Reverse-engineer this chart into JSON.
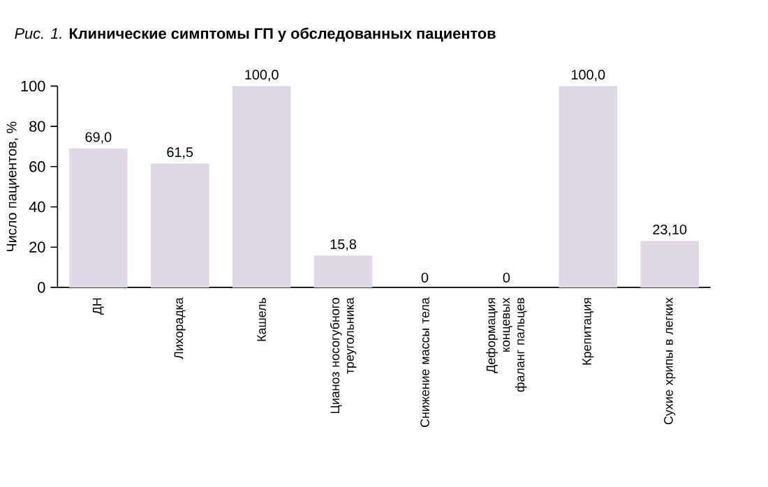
{
  "chart_data": {
    "type": "bar",
    "title": "*Рис. 1.* **Клинические симптомы ГП у обследованных пациентов**",
    "ylabel": "Число пациентов, %",
    "categories": [
      "ДН",
      "Лихорадка",
      "Кашель",
      "Цианоз носогубного треугольника",
      "Снижение массы тела",
      "Деформация концевых фаланг пальцев",
      "Крепитация",
      "Сухие хрипы в легких"
    ],
    "values": [
      69.0,
      61.5,
      100.0,
      15.8,
      0,
      0,
      100.0,
      23.1
    ],
    "value_labels": [
      "69,0",
      "61,5",
      "100,0",
      "15,8",
      "0",
      "0",
      "100,0",
      "23,10"
    ],
    "color": "#e0d8e4",
    "ylim": [
      0,
      100
    ],
    "yticks": [
      0,
      20,
      40,
      60,
      80,
      100
    ],
    "grid": false
  }
}
